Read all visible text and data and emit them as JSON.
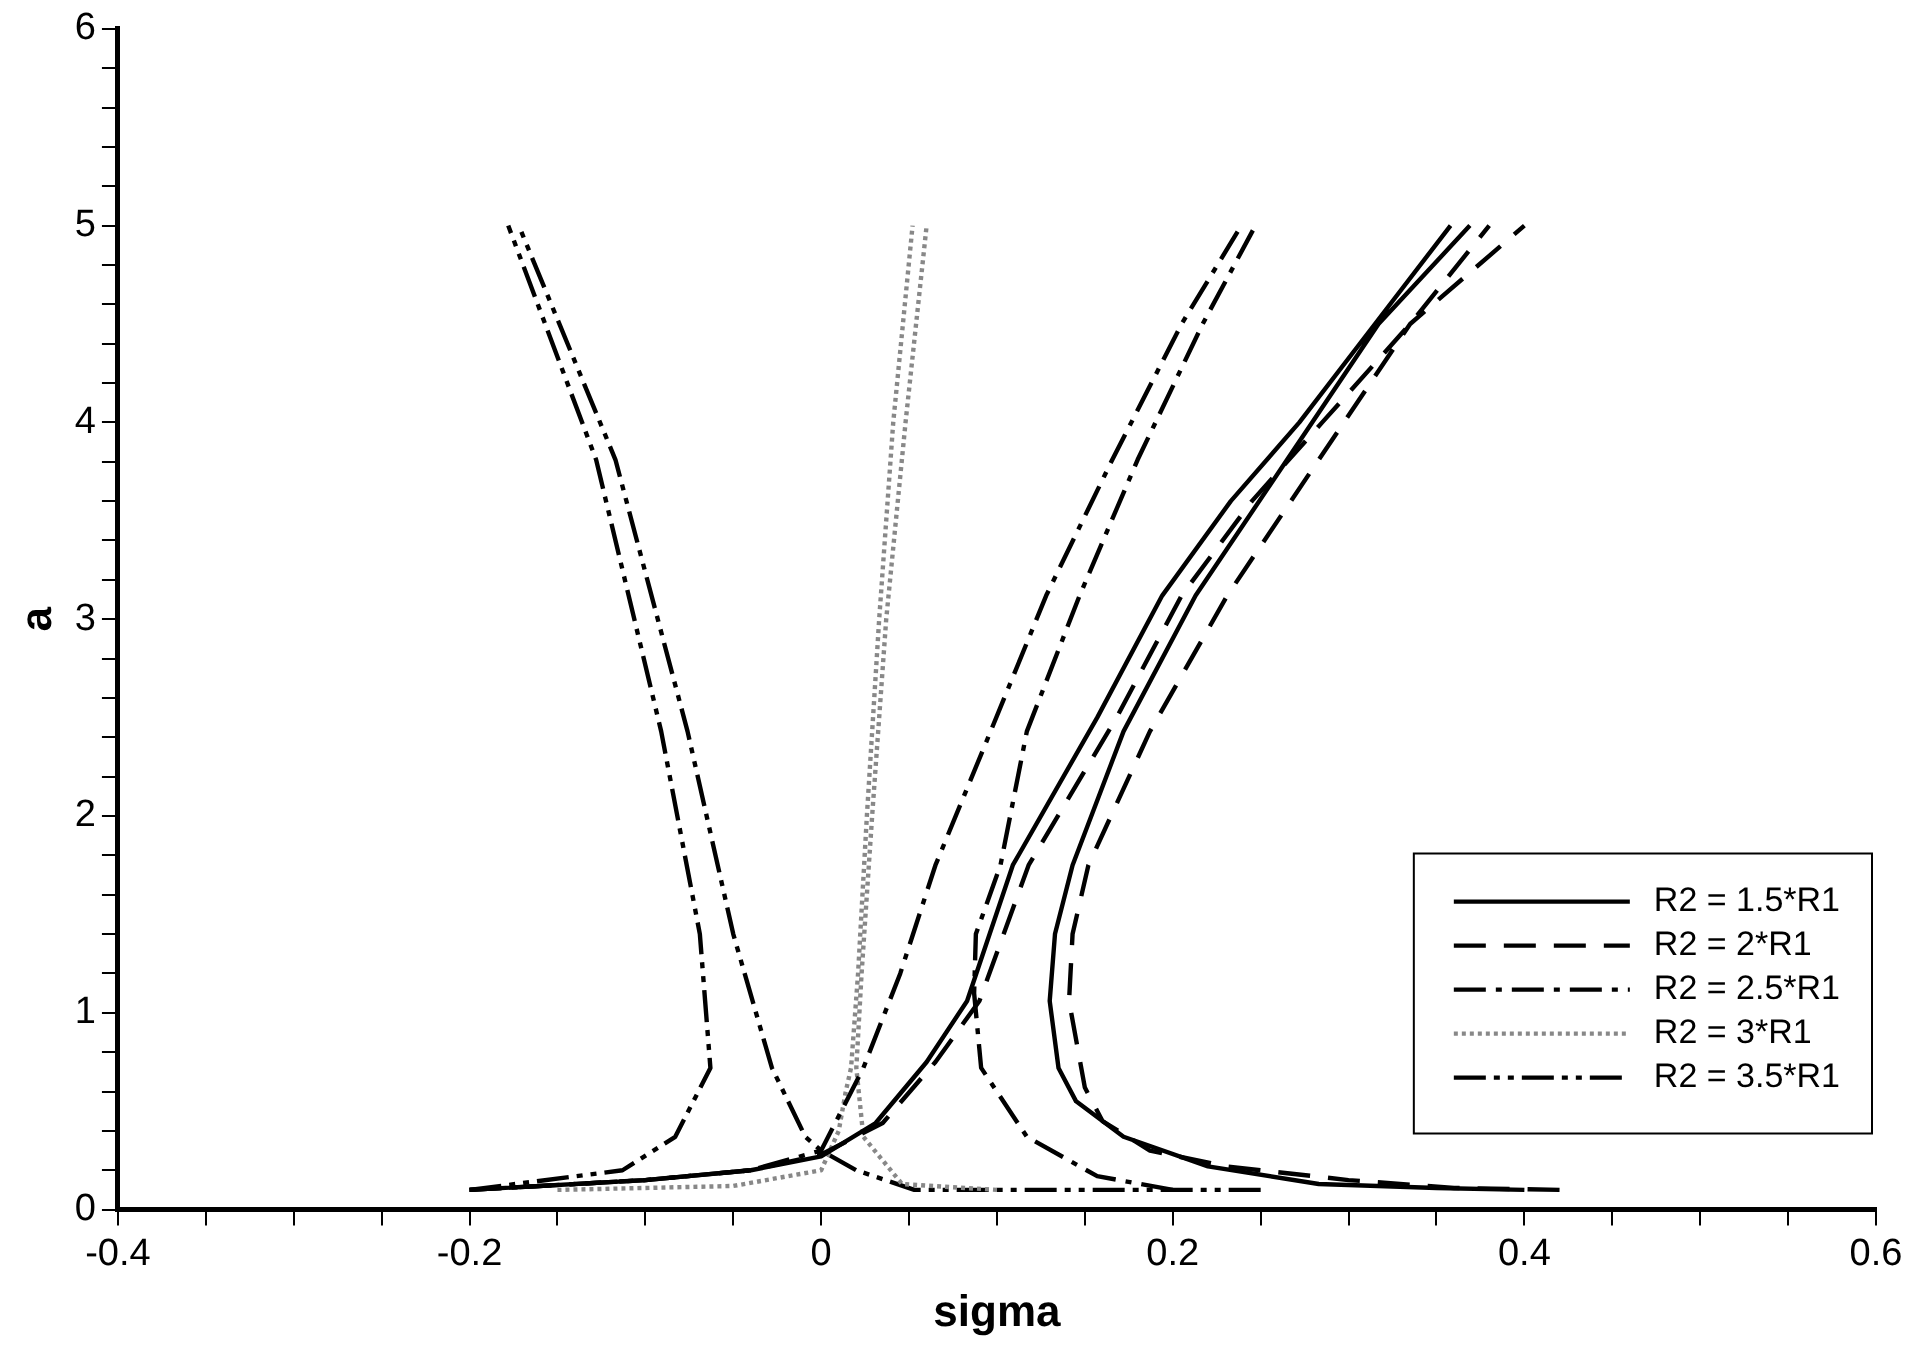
{
  "chart_data": {
    "type": "line",
    "xlabel": "sigma",
    "ylabel": "a",
    "xlim": [
      -0.4,
      0.6
    ],
    "ylim": [
      0,
      6
    ],
    "xticks": [
      -0.4,
      {
        "value": -0.35,
        "label": null
      },
      {
        "value": -0.3,
        "label": null
      },
      {
        "value": -0.25,
        "label": null
      },
      -0.2,
      {
        "value": -0.15,
        "label": null
      },
      {
        "value": -0.1,
        "label": null
      },
      {
        "value": -0.05,
        "label": null
      },
      0,
      {
        "value": 0.05,
        "label": null
      },
      {
        "value": 0.1,
        "label": null
      },
      {
        "value": 0.15,
        "label": null
      },
      0.2,
      {
        "value": 0.25,
        "label": null
      },
      {
        "value": 0.3,
        "label": null
      },
      {
        "value": 0.35,
        "label": null
      },
      0.4,
      {
        "value": 0.45,
        "label": null
      },
      {
        "value": 0.5,
        "label": null
      },
      {
        "value": 0.55,
        "label": null
      },
      0.6
    ],
    "yticks": [
      0,
      {
        "value": 0.2,
        "label": null
      },
      {
        "value": 0.4,
        "label": null
      },
      {
        "value": 0.6,
        "label": null
      },
      {
        "value": 0.8,
        "label": null
      },
      1,
      {
        "value": 1.2,
        "label": null
      },
      {
        "value": 1.4,
        "label": null
      },
      {
        "value": 1.6,
        "label": null
      },
      {
        "value": 1.8,
        "label": null
      },
      2,
      {
        "value": 2.2,
        "label": null
      },
      {
        "value": 2.4,
        "label": null
      },
      {
        "value": 2.6,
        "label": null
      },
      {
        "value": 2.8,
        "label": null
      },
      3,
      {
        "value": 3.2,
        "label": null
      },
      {
        "value": 3.4,
        "label": null
      },
      {
        "value": 3.6,
        "label": null
      },
      {
        "value": 3.8,
        "label": null
      },
      4,
      {
        "value": 4.2,
        "label": null
      },
      {
        "value": 4.4,
        "label": null
      },
      {
        "value": 4.6,
        "label": null
      },
      {
        "value": 4.8,
        "label": null
      },
      5,
      {
        "value": 5.2,
        "label": null
      },
      {
        "value": 5.4,
        "label": null
      },
      {
        "value": 5.6,
        "label": null
      },
      {
        "value": 5.8,
        "label": null
      },
      6
    ],
    "grid": false,
    "legend": "bottom right",
    "marker": "none",
    "series": [
      {
        "name": "R2 = 1.5*R1",
        "color": "#000000",
        "line_style": "solid",
        "x": [
          -0.2,
          -0.1,
          -0.04,
          0,
          0.031,
          0.06,
          0.083,
          0.109,
          0.157,
          0.194,
          0.233,
          0.272,
          0.315,
          0.358,
          null,
          0.4,
          0.35,
          0.283,
          0.22,
          0.172,
          0.145,
          0.135,
          0.13,
          0.133,
          0.143,
          0.172,
          0.213,
          0.265,
          0.317,
          0.369
        ],
        "values": [
          0.1,
          0.15,
          0.2,
          0.27,
          0.44,
          0.75,
          1.06,
          1.75,
          2.5,
          3.12,
          3.6,
          4.0,
          4.5,
          5,
          null,
          0.1,
          0.11,
          0.13,
          0.22,
          0.37,
          0.55,
          0.72,
          1.06,
          1.4,
          1.75,
          2.43,
          3.12,
          3.81,
          4.5,
          5
        ]
      },
      {
        "name": "R2 = 2*R1",
        "color": "#000000",
        "line_style": "dashed",
        "x": [
          -0.2,
          -0.1,
          -0.04,
          0,
          0.035,
          0.065,
          0.09,
          0.118,
          0.168,
          0.205,
          0.245,
          0.285,
          0.335,
          0.38,
          null,
          0.42,
          0.36,
          0.3,
          0.23,
          0.187,
          0.16,
          0.15,
          0.141,
          0.143,
          0.152,
          0.187,
          0.231,
          0.283,
          0.335,
          0.4
        ],
        "values": [
          0.1,
          0.15,
          0.2,
          0.28,
          0.44,
          0.75,
          1.06,
          1.75,
          2.5,
          3.12,
          3.6,
          4.0,
          4.5,
          5,
          null,
          0.1,
          0.11,
          0.15,
          0.22,
          0.3,
          0.45,
          0.62,
          1.06,
          1.4,
          1.75,
          2.43,
          3.12,
          3.81,
          4.5,
          5
        ]
      },
      {
        "name": "R2 = 2.5*R1",
        "color": "#000000",
        "line_style": "dashdot",
        "x": [
          -0.2,
          -0.1,
          -0.04,
          0,
          0.024,
          0.045,
          0.065,
          0.095,
          0.128,
          0.165,
          0.205,
          0.239,
          null,
          0.2,
          0.157,
          0.117,
          0.091,
          0.087,
          0.088,
          0.102,
          0.117,
          0.147,
          0.18,
          0.217,
          0.247
        ],
        "values": [
          0.1,
          0.15,
          0.2,
          0.3,
          0.72,
          1.2,
          1.75,
          2.4,
          3.12,
          3.8,
          4.5,
          5,
          null,
          0.1,
          0.17,
          0.37,
          0.72,
          1.1,
          1.4,
          1.75,
          2.43,
          3.12,
          3.81,
          4.5,
          5
        ]
      },
      {
        "name": "R2 = 3*R1",
        "color": "#888888",
        "line_style": "dotted",
        "x": [
          -0.15,
          -0.05,
          0,
          0.01,
          0.014,
          0.017,
          0.021,
          0.026,
          0.033,
          0.041,
          0.052,
          null,
          0.1,
          0.046,
          0.024,
          0.02,
          0.023,
          0.029,
          0.037,
          0.048,
          0.06
        ],
        "values": [
          0.1,
          0.12,
          0.2,
          0.4,
          0.6,
          0.72,
          1.2,
          2,
          3,
          4,
          5,
          null,
          0.1,
          0.13,
          0.37,
          0.72,
          1.2,
          2,
          3,
          4,
          5
        ]
      },
      {
        "name": "R2 = 3.5*R1",
        "color": "#000000",
        "line_style": "dashdotdot",
        "x": [
          -0.2,
          -0.113,
          -0.083,
          -0.063,
          -0.066,
          -0.069,
          -0.091,
          -0.128,
          -0.178,
          null,
          0.25,
          0.12,
          0.053,
          0.02,
          0,
          -0.009,
          -0.028,
          -0.05,
          -0.076,
          -0.117,
          -0.172
        ],
        "values": [
          0.1,
          0.2,
          0.37,
          0.72,
          1.06,
          1.4,
          2.43,
          3.81,
          5,
          null,
          0.1,
          0.1,
          0.1,
          0.2,
          0.3,
          0.37,
          0.72,
          1.4,
          2.43,
          3.81,
          5
        ]
      }
    ]
  }
}
